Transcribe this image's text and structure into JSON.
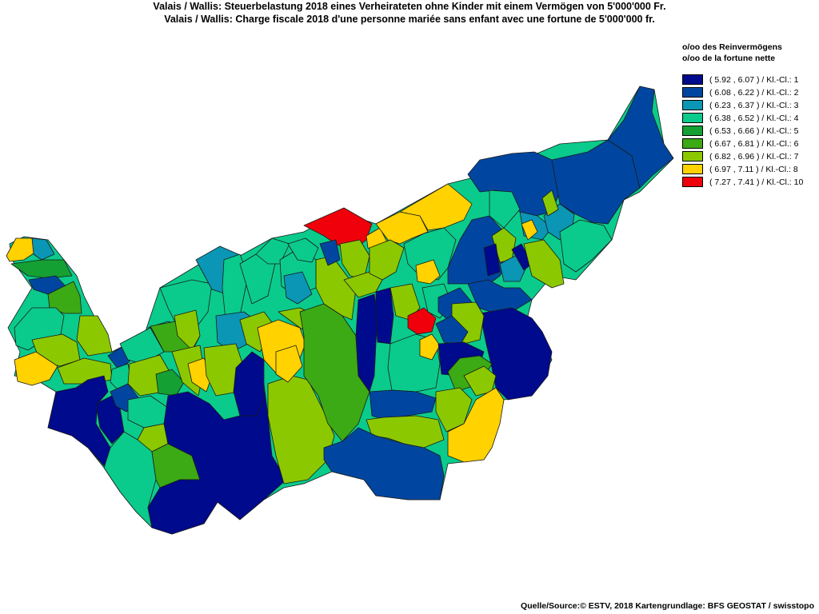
{
  "title": {
    "line1": "Valais / Wallis: Steuerbelastung 2018 eines Verheirateten ohne Kinder mit einem Vermögen von 5'000'000 Fr.",
    "line2": "Valais / Wallis: Charge fiscale 2018 d'une personne mariée sans enfant avec une fortune de 5'000'000 fr."
  },
  "legend": {
    "title_de": "o/oo des Reinvermögens",
    "title_fr": "o/oo de la fortune nette",
    "items": [
      {
        "label": "( 5.92 , 6.07 ) / Kl.-Cl.: 1",
        "color": "#000a8c"
      },
      {
        "label": "( 6.08 , 6.22 ) / Kl.-Cl.: 2",
        "color": "#0046a0"
      },
      {
        "label": "( 6.23 , 6.37 ) / Kl.-Cl.: 3",
        "color": "#0a96b4"
      },
      {
        "label": "( 6.38 , 6.52 ) / Kl.-Cl.: 4",
        "color": "#0acb8c"
      },
      {
        "label": "( 6.53 , 6.66 ) / Kl.-Cl.: 5",
        "color": "#14a032"
      },
      {
        "label": "( 6.67 , 6.81 ) / Kl.-Cl.: 6",
        "color": "#3caa14"
      },
      {
        "label": "( 6.82 , 6.96 ) / Kl.-Cl.: 7",
        "color": "#8cc800"
      },
      {
        "label": "( 6.97 , 7.11 ) / Kl.-Cl.: 8",
        "color": "#ffd200"
      },
      {
        "label": "( 7.27 , 7.41 ) / Kl.-Cl.: 10",
        "color": "#f0000a"
      }
    ]
  },
  "source": "Quelle/Source:© ESTV, 2018 Kartengrundlage: BFS GEOSTAT / swisstopo"
}
